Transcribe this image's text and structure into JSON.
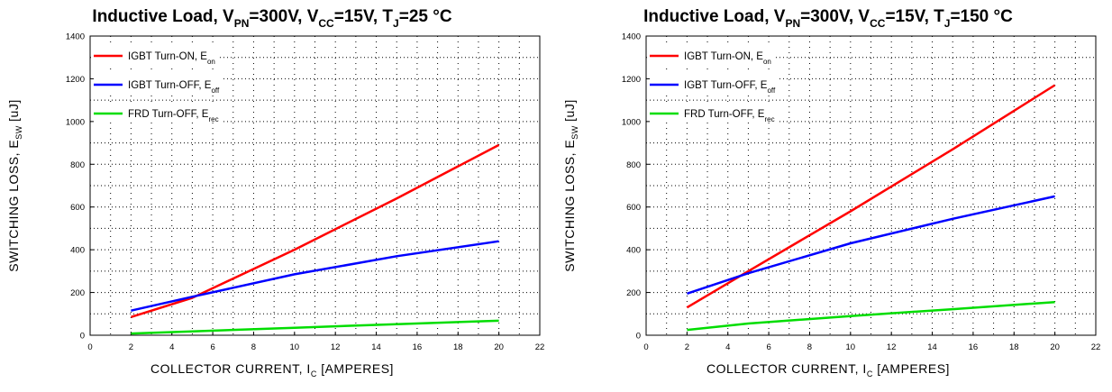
{
  "chart_data": [
    {
      "type": "line",
      "title": {
        "pre": "Inductive Load, V",
        "s1": "PN",
        "m1": "=300V, V",
        "s2": "CC",
        "m2": "=15V, T",
        "s3": "J",
        "post": "=25 °C"
      },
      "xlabel": {
        "pre": "COLLECTOR CURRENT, I",
        "sub": "C",
        "post": " [AMPERES]"
      },
      "ylabel": {
        "pre": "SWITCHING LOSS, E",
        "sub": "SW",
        "post": " [uJ]"
      },
      "xlim": [
        0,
        22
      ],
      "ylim": [
        0,
        1400
      ],
      "xticks": [
        0,
        2,
        4,
        6,
        8,
        10,
        12,
        14,
        16,
        18,
        20,
        22
      ],
      "yticks": [
        0,
        200,
        400,
        600,
        800,
        1000,
        1200,
        1400
      ],
      "grid": "dotted",
      "legend_position": "top-left",
      "series": [
        {
          "name": "IGBT Turn-ON, E",
          "name_sub": "on",
          "color": "#ff0000",
          "x": [
            2,
            5,
            10,
            15,
            20
          ],
          "y": [
            85,
            175,
            400,
            640,
            890
          ]
        },
        {
          "name": "IGBT Turn-OFF, E",
          "name_sub": "off",
          "color": "#0000ff",
          "x": [
            2,
            5,
            10,
            15,
            20
          ],
          "y": [
            115,
            180,
            285,
            370,
            440
          ]
        },
        {
          "name": "FRD Turn-OFF, E",
          "name_sub": "rec",
          "color": "#00dd00",
          "x": [
            2,
            5,
            10,
            15,
            20
          ],
          "y": [
            8,
            18,
            35,
            52,
            68
          ]
        }
      ]
    },
    {
      "type": "line",
      "title": {
        "pre": "Inductive Load, V",
        "s1": "PN",
        "m1": "=300V, V",
        "s2": "CC",
        "m2": "=15V, T",
        "s3": "J",
        "post": "=150 °C"
      },
      "xlabel": {
        "pre": "COLLECTOR CURRENT, I",
        "sub": "C",
        "post": " [AMPERES]"
      },
      "ylabel": {
        "pre": "SWITCHING LOSS, E",
        "sub": "SW",
        "post": " [uJ]"
      },
      "xlim": [
        0,
        22
      ],
      "ylim": [
        0,
        1400
      ],
      "xticks": [
        0,
        2,
        4,
        6,
        8,
        10,
        12,
        14,
        16,
        18,
        20,
        22
      ],
      "yticks": [
        0,
        200,
        400,
        600,
        800,
        1000,
        1200,
        1400
      ],
      "grid": "dotted",
      "legend_position": "top-left",
      "series": [
        {
          "name": "IGBT Turn-ON, E",
          "name_sub": "on",
          "color": "#ff0000",
          "x": [
            2,
            5,
            10,
            15,
            20
          ],
          "y": [
            130,
            300,
            580,
            870,
            1170
          ]
        },
        {
          "name": "IGBT Turn-OFF, E",
          "name_sub": "off",
          "color": "#0000ff",
          "x": [
            2,
            5,
            10,
            15,
            20
          ],
          "y": [
            195,
            290,
            430,
            545,
            650
          ]
        },
        {
          "name": "FRD Turn-OFF, E",
          "name_sub": "rec",
          "color": "#00dd00",
          "x": [
            2,
            5,
            10,
            15,
            20
          ],
          "y": [
            25,
            55,
            90,
            122,
            155
          ]
        }
      ]
    }
  ]
}
